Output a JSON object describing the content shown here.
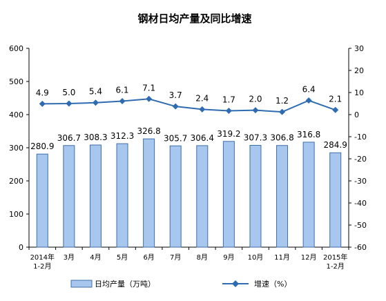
{
  "chart_data": {
    "type": "bar+line",
    "title": "钢材日均产量及同比增速",
    "categories": [
      [
        "2014年",
        "1-2月"
      ],
      [
        "3月"
      ],
      [
        "4月"
      ],
      [
        "5月"
      ],
      [
        "6月"
      ],
      [
        "7月"
      ],
      [
        "8月"
      ],
      [
        "9月"
      ],
      [
        "10月"
      ],
      [
        "11月"
      ],
      [
        "12月"
      ],
      [
        "2015年",
        "1-2月"
      ]
    ],
    "series": [
      {
        "name": "日均产量（万吨）",
        "kind": "bar",
        "axis": "left",
        "values": [
          280.9,
          306.7,
          308.3,
          312.3,
          326.8,
          305.7,
          306.4,
          319.2,
          307.3,
          306.8,
          316.8,
          284.9
        ],
        "labels": [
          "280.9",
          "306.7",
          "308.3",
          "312.3",
          "326.8",
          "305.7",
          "306.4",
          "319.2",
          "307.3",
          "306.8",
          "316.8",
          "284.9"
        ]
      },
      {
        "name": "增速（%）",
        "kind": "line",
        "axis": "right",
        "values": [
          4.9,
          5.0,
          5.4,
          6.1,
          7.1,
          3.7,
          2.4,
          1.7,
          2.0,
          1.2,
          6.4,
          2.1
        ],
        "labels": [
          "4.9",
          "5.0",
          "5.4",
          "6.1",
          "7.1",
          "3.7",
          "2.4",
          "1.7",
          "2.0",
          "1.2",
          "6.4",
          "2.1"
        ]
      }
    ],
    "y_left": {
      "min": 0,
      "max": 600,
      "ticks": [
        "0",
        "100",
        "200",
        "300",
        "400",
        "500",
        "600"
      ]
    },
    "y_right": {
      "min": -60,
      "max": 30,
      "ticks": [
        "-60",
        "-50",
        "-40",
        "-30",
        "-20",
        "-10",
        "0",
        "10",
        "20",
        "30"
      ]
    },
    "grid": false,
    "legend": "bottom",
    "colors": {
      "bar_fill": "#a7c7ee",
      "bar_stroke": "#3e6da8",
      "line": "#2e6bb0",
      "axis": "#000000"
    }
  }
}
